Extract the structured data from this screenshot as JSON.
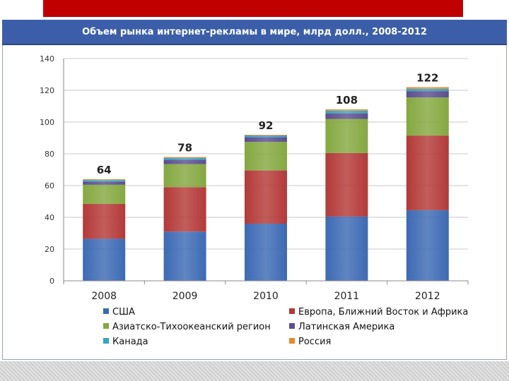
{
  "title": "Объем рынка интернет-рекламы в мире, млрд долл., 2008-2012",
  "colors": {
    "header_red": "#c00000",
    "title_band": "#3c5ea8"
  },
  "chart_data": {
    "type": "bar",
    "stacked": true,
    "title": "",
    "xlabel": "",
    "ylabel": "",
    "categories": [
      "2008",
      "2009",
      "2010",
      "2011",
      "2012"
    ],
    "ylim": [
      0,
      140
    ],
    "yticks": [
      0,
      20,
      40,
      60,
      80,
      100,
      120,
      140
    ],
    "grid": true,
    "legend_position": "bottom",
    "totals": [
      64,
      78,
      92,
      108,
      122
    ],
    "series": [
      {
        "name": "США",
        "color": "#3d6ab4",
        "values": [
          26.5,
          31,
          36,
          40.5,
          44.5
        ]
      },
      {
        "name": "Европа, Ближний Восток и Африка",
        "color": "#b33a38",
        "values": [
          22,
          28,
          33.5,
          40,
          47
        ]
      },
      {
        "name": "Азиатско-Тихоокеанский регион",
        "color": "#85a840",
        "values": [
          12,
          14.5,
          18,
          21.5,
          24
        ]
      },
      {
        "name": "Латинская Америка",
        "color": "#5c4e8f",
        "values": [
          2,
          2.8,
          3,
          3.5,
          4
        ]
      },
      {
        "name": "Канада",
        "color": "#38a3be",
        "values": [
          1,
          1.2,
          1.1,
          1.7,
          1.5
        ]
      },
      {
        "name": "Россия",
        "color": "#e58a2c",
        "values": [
          0.5,
          0.5,
          0.4,
          0.8,
          1
        ]
      }
    ]
  }
}
